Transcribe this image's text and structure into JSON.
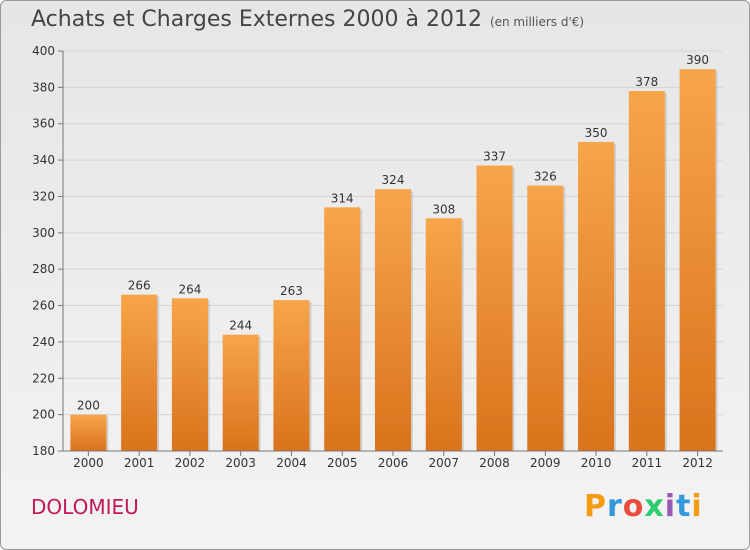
{
  "title": "Achats et Charges Externes 2000 à 2012",
  "unit_label": "(en milliers d'€)",
  "city": "DOLOMIEU",
  "logo": {
    "text": "Proxiti",
    "letters": [
      "P",
      "r",
      "o",
      "x",
      "i",
      "t",
      "i"
    ],
    "colors": [
      "#f39c12",
      "#3498db",
      "#e74c3c",
      "#2ecc71",
      "#9b59b6",
      "#3498db",
      "#f39c12"
    ]
  },
  "chart_data": {
    "type": "bar",
    "categories": [
      "2000",
      "2001",
      "2002",
      "2003",
      "2004",
      "2005",
      "2006",
      "2007",
      "2008",
      "2009",
      "2010",
      "2011",
      "2012"
    ],
    "values": [
      200,
      266,
      264,
      244,
      263,
      314,
      324,
      308,
      337,
      326,
      350,
      378,
      390
    ],
    "data_labels": [
      "200",
      "266",
      "264",
      "244",
      "263",
      "314",
      "324",
      "308",
      "337",
      "326",
      "350",
      "378",
      "390"
    ],
    "title": "Achats et Charges Externes 2000 à 2012",
    "xlabel": "",
    "ylabel": "",
    "ylim": [
      180,
      400
    ],
    "yticks": [
      180,
      200,
      220,
      240,
      260,
      280,
      300,
      320,
      340,
      360,
      380,
      400
    ],
    "ytick_labels": [
      "180",
      "200",
      "220",
      "240",
      "260",
      "280",
      "300",
      "320",
      "340",
      "360",
      "380",
      "400"
    ],
    "grid": true,
    "bar_color_top": "#f7a54a",
    "bar_color_bottom": "#d9731c"
  }
}
